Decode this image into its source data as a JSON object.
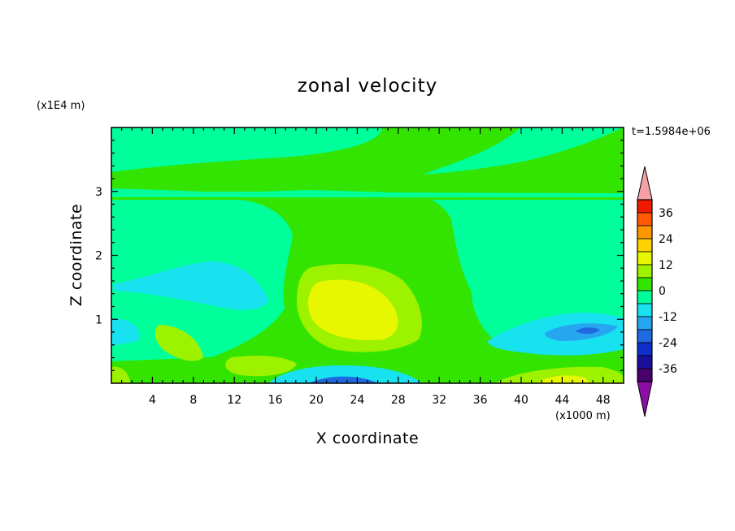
{
  "chart_data": {
    "type": "heatmap",
    "title": "zonal velocity",
    "xlabel": "X coordinate",
    "ylabel": "Z coordinate",
    "x_unit": "(x1000 m)",
    "y_unit": "(x1E4 m)",
    "time_label": "t=1.5984e+06",
    "xlim": [
      0,
      50
    ],
    "ylim": [
      0,
      4
    ],
    "x_ticks": [
      "4",
      "8",
      "12",
      "16",
      "20",
      "24",
      "28",
      "32",
      "36",
      "40",
      "44",
      "48"
    ],
    "y_ticks": [
      "1",
      "2",
      "3"
    ],
    "colorbar": {
      "levels": [
        -42,
        -36,
        -30,
        -24,
        -18,
        -12,
        -6,
        0,
        6,
        12,
        18,
        24,
        30,
        36,
        42
      ],
      "labels": [
        "36",
        "24",
        "12",
        "0",
        "-12",
        "-24",
        "-36"
      ],
      "colors": [
        "#48006f",
        "#1a0f9a",
        "#0d2ec8",
        "#1f6ae0",
        "#27a6f0",
        "#18e1f0",
        "#00ff9b",
        "#33e400",
        "#9df200",
        "#e7f700",
        "#ffd200",
        "#ff9800",
        "#ff5a00",
        "#ee1b00"
      ],
      "under_color": "#8d0ea6",
      "over_color": "#f5a1a6"
    },
    "regions": [
      {
        "name": "background",
        "value": 3
      },
      {
        "name": "upper-layer",
        "z_range": [
          3.05,
          4.0
        ],
        "value": -3
      },
      {
        "name": "mid-column",
        "x_range": [
          14,
          36
        ],
        "z_range": [
          0.3,
          3.0
        ],
        "value": 3
      },
      {
        "name": "central-max",
        "center": [
          24,
          1.0
        ],
        "value": 13
      },
      {
        "name": "central-core",
        "center": [
          24,
          0.9
        ],
        "value": 16
      },
      {
        "name": "left-weak-negative",
        "center": [
          8,
          1.5
        ],
        "value": -4
      },
      {
        "name": "right-negative",
        "center": [
          44,
          0.8
        ],
        "value": -12
      },
      {
        "name": "right-min",
        "center": [
          46,
          0.82
        ],
        "value": -20
      },
      {
        "name": "bottom-negative",
        "center": [
          23,
          0.05
        ],
        "value": -22
      },
      {
        "name": "bottom-right-positive",
        "center": [
          44,
          0.1
        ],
        "value": 15
      }
    ]
  }
}
